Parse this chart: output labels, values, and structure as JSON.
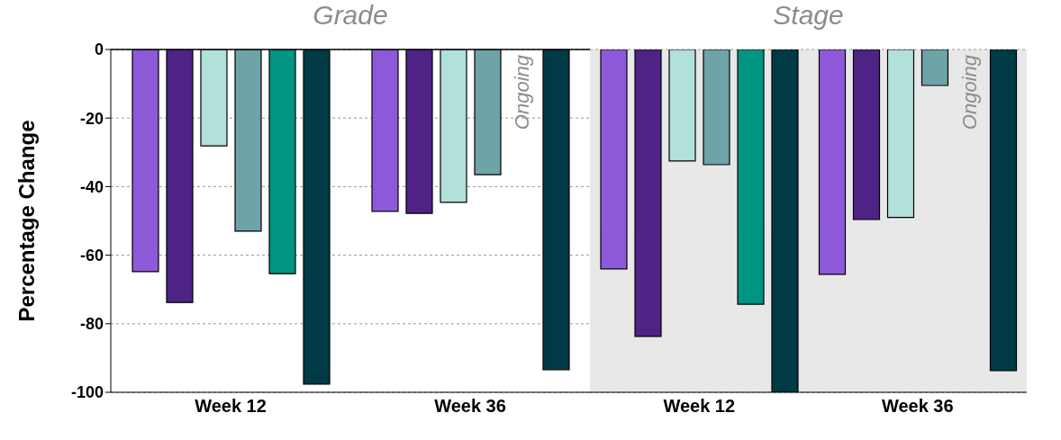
{
  "chart_data": [
    {
      "type": "bar",
      "title": "Grade",
      "ylabel": "Percentage Change",
      "categories": [
        "Week 12",
        "Week 36"
      ],
      "series": [
        {
          "color": "#8e59d9",
          "values": [
            -64.8,
            -47.2
          ]
        },
        {
          "color": "#4f2386",
          "values": [
            -73.8,
            -47.8
          ]
        },
        {
          "color": "#b2e0da",
          "values": [
            -28.1,
            -44.6
          ]
        },
        {
          "color": "#6ea3a8",
          "values": [
            -53,
            -36.5
          ]
        },
        {
          "color": "#009481",
          "values": [
            -65.4,
            null
          ]
        },
        {
          "color": "#003a44",
          "values": [
            -97.6,
            -93.4
          ]
        }
      ],
      "ylim": [
        -100,
        0
      ],
      "yticks": [
        0,
        -20,
        -40,
        -60,
        -80,
        -100
      ],
      "grid": "y",
      "legend": false,
      "ref_lines": [
        {
          "axis": "y",
          "value": 0,
          "color": "#000000"
        }
      ],
      "annotations": [
        {
          "text": "Ongoing",
          "x": "Week 36"
        }
      ]
    },
    {
      "type": "bar",
      "title": "Stage",
      "categories": [
        "Week 12",
        "Week 36"
      ],
      "series": [
        {
          "color": "#8e59d9",
          "values": [
            -64,
            -65.6
          ]
        },
        {
          "color": "#4f2386",
          "values": [
            -83.7,
            -49.6
          ]
        },
        {
          "color": "#b2e0da",
          "values": [
            -32.5,
            -49
          ]
        },
        {
          "color": "#6ea3a8",
          "values": [
            -33.6,
            -10.5
          ]
        },
        {
          "color": "#009481",
          "values": [
            -74.3,
            null
          ]
        },
        {
          "color": "#003a44",
          "values": [
            -100,
            -93.7
          ]
        }
      ],
      "ylim": [
        -100,
        0
      ],
      "yticks": [
        0,
        -20,
        -40,
        -60,
        -80,
        -100
      ],
      "grid": "y",
      "legend": false,
      "tick_labels": "x",
      "bands": [
        {
          "axis": "x",
          "from": "Week 12",
          "to": "Week 36",
          "color": "#e8e8e8"
        }
      ],
      "annotations": [
        {
          "text": "Ongoing",
          "x": "Week 36"
        }
      ]
    }
  ]
}
